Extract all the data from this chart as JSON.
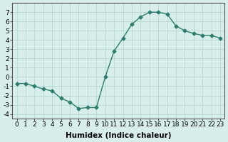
{
  "x": [
    0,
    1,
    2,
    3,
    4,
    5,
    6,
    7,
    8,
    9,
    10,
    11,
    12,
    13,
    14,
    15,
    16,
    17,
    18,
    19,
    20,
    21,
    22,
    23
  ],
  "y": [
    -0.7,
    -0.7,
    -1.0,
    -1.3,
    -1.5,
    -2.3,
    -2.7,
    -3.4,
    -3.3,
    -3.3,
    0.0,
    2.8,
    4.2,
    5.7,
    6.5,
    7.0,
    7.0,
    6.8,
    5.5,
    5.0,
    4.7,
    4.5,
    4.5,
    4.2
  ],
  "line_color": "#2d7d6e",
  "marker": "D",
  "marker_size": 2.5,
  "bg_color": "#d8eeea",
  "grid_color": "#aed4cc",
  "xlabel": "Humidex (Indice chaleur)",
  "ylim": [
    -4.5,
    8
  ],
  "xlim": [
    -0.5,
    23.5
  ],
  "yticks": [
    -4,
    -3,
    -2,
    -1,
    0,
    1,
    2,
    3,
    4,
    5,
    6,
    7
  ],
  "xticks": [
    0,
    1,
    2,
    3,
    4,
    5,
    6,
    7,
    8,
    9,
    10,
    11,
    12,
    13,
    14,
    15,
    16,
    17,
    18,
    19,
    20,
    21,
    22,
    23
  ],
  "xlabel_fontsize": 7.5,
  "tick_fontsize": 6.5,
  "line_width": 1.0
}
